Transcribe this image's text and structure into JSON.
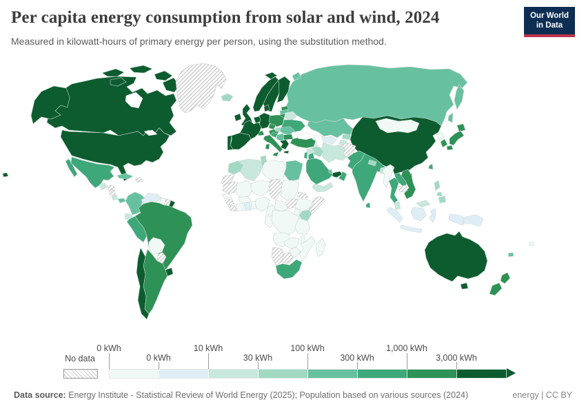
{
  "header": {
    "title": "Per capita energy consumption from solar and wind, 2024",
    "subtitle": "Measured in kilowatt-hours of primary energy per person, using the substitution method."
  },
  "logo": {
    "line1": "Our World",
    "line2": "in Data",
    "bg": "#0d2e52",
    "accent": "#c0344c"
  },
  "legend": {
    "no_data_label": "No data",
    "colors": [
      "#f0f9f6",
      "#dfeef6",
      "#c9e8dd",
      "#a2d9c3",
      "#67c1a1",
      "#3fa87a",
      "#2e9155",
      "#0d5c2f"
    ],
    "ticks": [
      {
        "label": "0 kWh",
        "row": "top",
        "boundary": 0
      },
      {
        "label": "0 kWh",
        "row": "bottom",
        "boundary": 1
      },
      {
        "label": "10 kWh",
        "row": "top",
        "boundary": 2
      },
      {
        "label": "30 kWh",
        "row": "bottom",
        "boundary": 3
      },
      {
        "label": "100 kWh",
        "row": "top",
        "boundary": 4
      },
      {
        "label": "300 kWh",
        "row": "bottom",
        "boundary": 5
      },
      {
        "label": "1,000 kWh",
        "row": "top",
        "boundary": 6
      },
      {
        "label": "3,000 kWh",
        "row": "bottom",
        "boundary": 7
      }
    ]
  },
  "footer": {
    "source_label": "Data source:",
    "source_text": " Energy Institute - Statistical Review of World Energy (2025); Population based on various sources (2024)",
    "license": "energy | CC BY"
  },
  "chart_data": {
    "type": "choropleth-map",
    "title": "Per capita energy consumption from solar and wind, 2024",
    "unit": "kWh per person",
    "legend_bins": [
      "0 kWh",
      "0 kWh",
      "10 kWh",
      "30 kWh",
      "100 kWh",
      "300 kWh",
      "1,000 kWh",
      "3,000 kWh"
    ],
    "no_data_style": "hatched",
    "regions": {
      "united-states": 8,
      "canada": 8,
      "greenland": "no-data",
      "mexico": 6,
      "guatemala": 3,
      "honduras": "no-data",
      "nicaragua": "no-data",
      "costa-rica": 3,
      "panama": 5,
      "cuba": 5,
      "hispaniola": "no-data",
      "iceland": 4,
      "colombia": 5,
      "venezuela": 2,
      "guyana": 1,
      "suriname": "no-data",
      "french-guiana": 8,
      "ecuador": 3,
      "peru": 6,
      "brazil": 7,
      "bolivia": 1,
      "paraguay": "no-data",
      "uruguay": 8,
      "argentina": 7,
      "chile": 8,
      "ireland": 8,
      "united-kingdom": 8,
      "portugal": 8,
      "spain": 8,
      "france": 8,
      "netherlands": 8,
      "denmark": 8,
      "germany": 8,
      "switzerland": 7,
      "czechia": 7,
      "austria": 7,
      "italy": 7,
      "norway": 8,
      "sweden": 8,
      "finland": 8,
      "estonia": 7,
      "latvia": 5,
      "lithuania": 7,
      "poland": 7,
      "belarus": 3,
      "ukraine": 6,
      "hungary": 4,
      "romania": 5,
      "croatia": 6,
      "serbia": 5,
      "bulgaria": 7,
      "greece": 8,
      "russia": 5,
      "kazakhstan": 5,
      "uzbekistan": 2,
      "turkmenistan": 2,
      "kyrgyzstan": 4,
      "tajikistan": 3,
      "georgia": 3,
      "azerbaijan": 2,
      "turkey": 7,
      "syria": 3,
      "israel": 6,
      "jordan": 6,
      "iraq": 4,
      "iran": 3,
      "afghanistan": "no-data",
      "pakistan": 6,
      "india": 6,
      "nepal": 4,
      "bangladesh": 3,
      "sri-lanka": 6,
      "myanmar": 1,
      "thailand": 6,
      "laos": 6,
      "cambodia": "no-data",
      "vietnam": 7,
      "malaysia": 3,
      "indonesia": 2,
      "papua-new-guinea": 2,
      "philippines": 4,
      "china": 8,
      "mongolia": 1,
      "north-korea": 1,
      "south-korea": 7,
      "japan": 7,
      "taiwan": 6,
      "saudi-arabia": 6,
      "qatar": 5,
      "uae": 8,
      "oman": 6,
      "yemen": 3,
      "morocco": 4,
      "western-sahara": "no-data",
      "algeria": 3,
      "tunisia": 4,
      "libya": 1,
      "egypt": 5,
      "mauritania": "no-data",
      "mali": 1,
      "niger": 1,
      "chad": "no-data",
      "sudan": 1,
      "eritrea": "no-data",
      "ethiopia": 1,
      "somalia": "no-data",
      "senegal": 1,
      "guinea": "no-data",
      "liberia": "no-data",
      "ivory-coast": 1,
      "ghana": 2,
      "togo-benin": 1,
      "burkina-faso": 1,
      "nigeria": 1,
      "cameroon": 1,
      "central-african-republic": 1,
      "south-sudan": "no-data",
      "uganda": 1,
      "kenya": 4,
      "gabon-congo": 1,
      "dr-congo": 1,
      "tanzania": 1,
      "angola": 1,
      "zambia": 1,
      "malawi": 1,
      "mozambique": 1,
      "zimbabwe": 1,
      "botswana": "no-data",
      "namibia": "no-data",
      "south-africa": 6,
      "madagascar": 1,
      "australia": 8,
      "new-zealand": 7,
      "new-caledonia": 5,
      "fiji": 1
    }
  }
}
